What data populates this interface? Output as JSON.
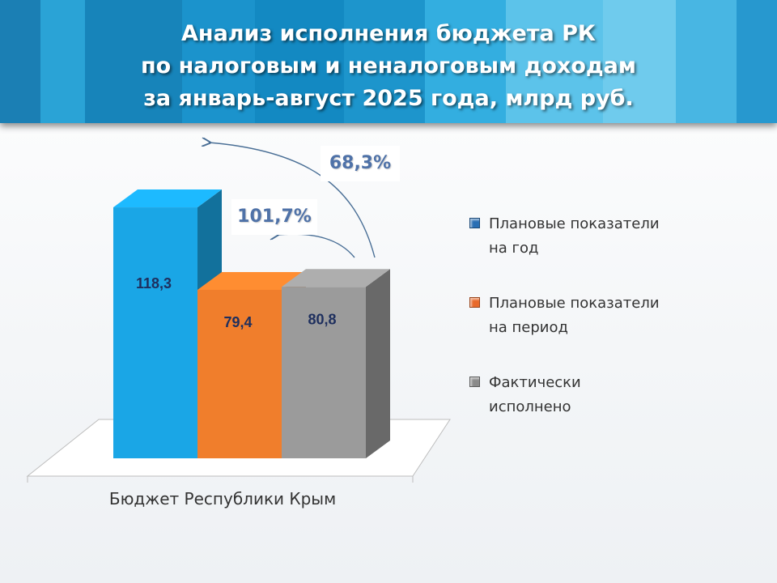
{
  "title": {
    "line1": "Анализ исполнения бюджета РК",
    "line2": "по налоговым и неналоговым доходам",
    "line3": "за январь-август 2025 года, млрд руб."
  },
  "annotations": {
    "pct_actual_vs_year": "68,3%",
    "pct_actual_vs_period": "101,7%"
  },
  "chart_data": {
    "type": "bar",
    "categories": [
      "Бюджет Республики Крым"
    ],
    "series": [
      {
        "name": "Плановые показатели на год",
        "values": [
          118.3
        ],
        "label": "118,3",
        "color": "#1aa6e6"
      },
      {
        "name": "Плановые показатели на период",
        "values": [
          79.4
        ],
        "label": "79,4",
        "color": "#f07e2c"
      },
      {
        "name": "Фактически исполнено",
        "values": [
          80.8
        ],
        "label": "80,8",
        "color": "#9b9b9b"
      }
    ],
    "legend_position": "right",
    "grid": false
  },
  "legend": {
    "items": [
      {
        "line1": "Плановые показатели",
        "line2": "на год"
      },
      {
        "line1": "Плановые показатели",
        "line2": "на период"
      },
      {
        "line1": "Фактически",
        "line2": "исполнено"
      }
    ]
  }
}
